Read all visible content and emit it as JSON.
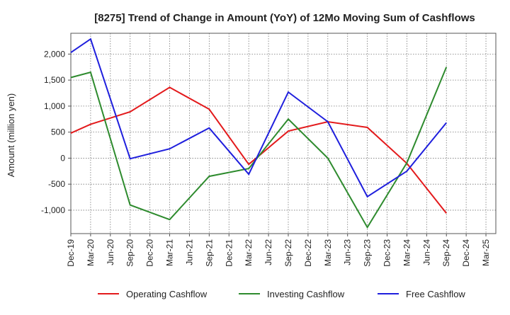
{
  "chart_data": {
    "type": "line",
    "title": "[8275]  Trend of Change in Amount (YoY) of 12Mo Moving Sum of Cashflows",
    "xlabel": "",
    "ylabel": "Amount (million yen)",
    "ylim": [
      -1450,
      2400
    ],
    "yticks": [
      -1000,
      -500,
      0,
      500,
      1000,
      1500,
      2000
    ],
    "ytick_labels": [
      "-1,000",
      "-500",
      "0",
      "500",
      "1,000",
      "1,500",
      "2,000"
    ],
    "grid": true,
    "legend_position": "bottom",
    "categories": [
      "Dec-19",
      "Mar-20",
      "Jun-20",
      "Sep-20",
      "Dec-20",
      "Mar-21",
      "Jun-21",
      "Sep-21",
      "Dec-21",
      "Mar-22",
      "Jun-22",
      "Sep-22",
      "Dec-22",
      "Mar-23",
      "Jun-23",
      "Sep-23",
      "Dec-23",
      "Mar-24",
      "Jun-24",
      "Sep-24",
      "Dec-24",
      "Mar-25"
    ],
    "series": [
      {
        "name": "Operating Cashflow",
        "color": "#e31a1c",
        "x": [
          "Dec-19",
          "Mar-20",
          "Sep-20",
          "Mar-21",
          "Sep-21",
          "Mar-22",
          "Sep-22",
          "Mar-23",
          "Sep-23",
          "Mar-24",
          "Sep-24"
        ],
        "values": [
          480,
          650,
          890,
          1360,
          940,
          -120,
          520,
          700,
          590,
          -100,
          -1060
        ]
      },
      {
        "name": "Investing Cashflow",
        "color": "#2e8b2e",
        "x": [
          "Dec-19",
          "Mar-20",
          "Sep-20",
          "Mar-21",
          "Sep-21",
          "Mar-22",
          "Sep-22",
          "Mar-23",
          "Sep-23",
          "Mar-24",
          "Sep-24"
        ],
        "values": [
          1550,
          1650,
          -900,
          -1180,
          -350,
          -200,
          750,
          0,
          -1330,
          -90,
          1750
        ]
      },
      {
        "name": "Free Cashflow",
        "color": "#1f1fdd",
        "x": [
          "Dec-19",
          "Mar-20",
          "Sep-20",
          "Mar-21",
          "Sep-21",
          "Mar-22",
          "Sep-22",
          "Mar-23",
          "Sep-23",
          "Mar-24",
          "Sep-24"
        ],
        "values": [
          2030,
          2290,
          -10,
          180,
          580,
          -310,
          1270,
          700,
          -740,
          -250,
          680
        ]
      }
    ]
  }
}
